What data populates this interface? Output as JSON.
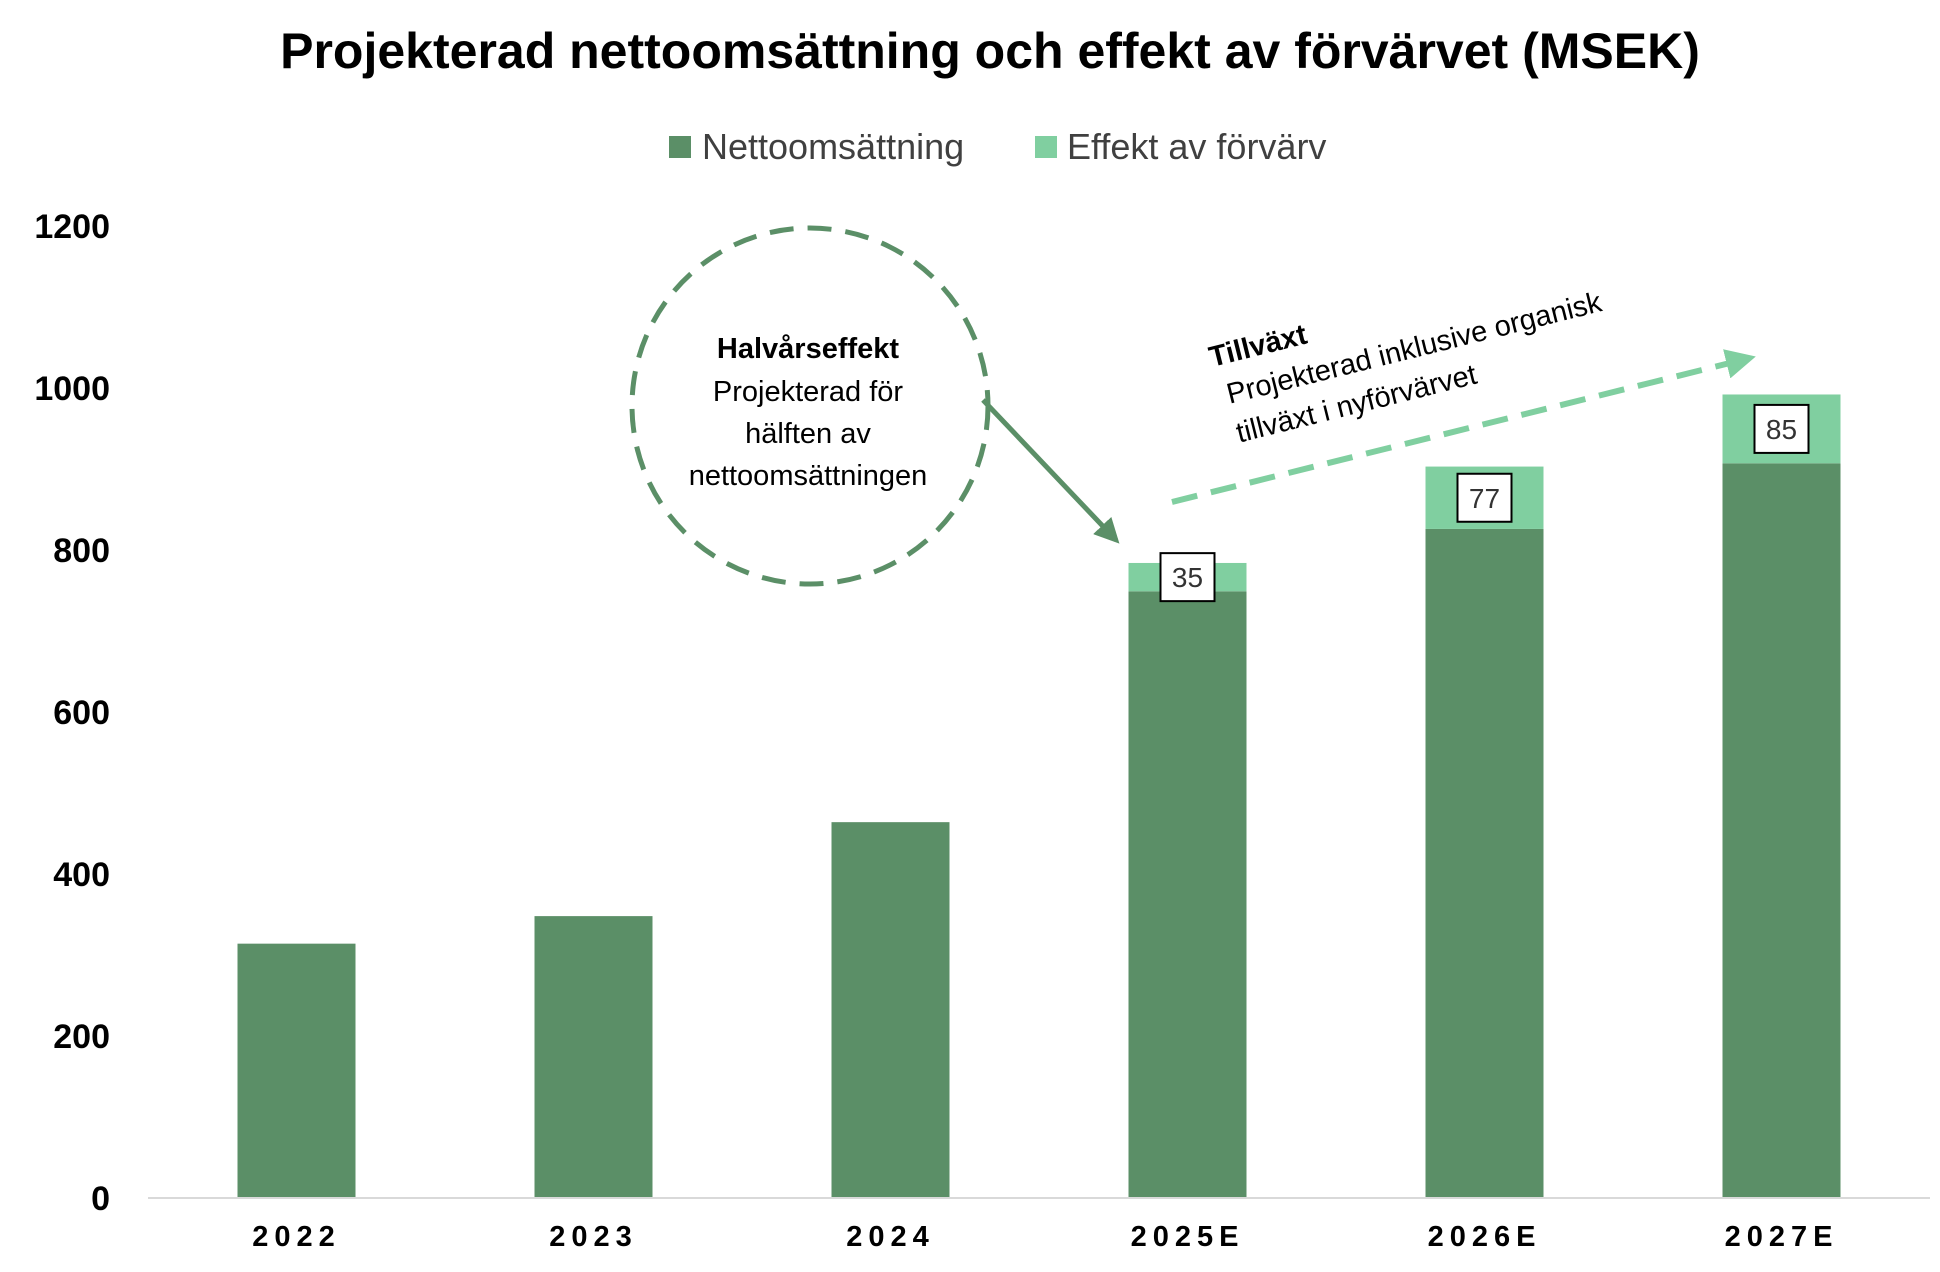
{
  "chart_data": {
    "type": "bar",
    "stacked": true,
    "title": "Projekterad nettoomsättning och effekt av förvärvet (MSEK)",
    "categories": [
      "2022",
      "2023",
      "2024",
      "2025E",
      "2026E",
      "2027E"
    ],
    "series": [
      {
        "name": "Nettoomsättning",
        "color": "#5b8f67",
        "values": [
          314,
          348,
          464,
          749,
          826,
          907
        ]
      },
      {
        "name": "Effekt av förvärv",
        "color": "#80cfa0",
        "values": [
          0,
          0,
          0,
          35,
          77,
          85
        ]
      }
    ],
    "data_labels": [
      "",
      "",
      "",
      "35",
      "77",
      "85"
    ],
    "ylim": [
      0,
      1200
    ],
    "yticks": [
      0,
      200,
      400,
      600,
      800,
      1000,
      1200
    ],
    "xlabel": "",
    "ylabel": "",
    "grid": false,
    "legend_position": "top-center",
    "annotations": {
      "halfyear": {
        "heading": "Halvårseffekt",
        "lines": [
          "Projekterad för",
          "hälften av",
          "nettoomsättningen"
        ],
        "target_category": "2025E"
      },
      "growth": {
        "heading": "Tillväxt",
        "lines": [
          "Projekterad inklusive organisk",
          "tillväxt i nyförvärvet"
        ]
      }
    }
  }
}
